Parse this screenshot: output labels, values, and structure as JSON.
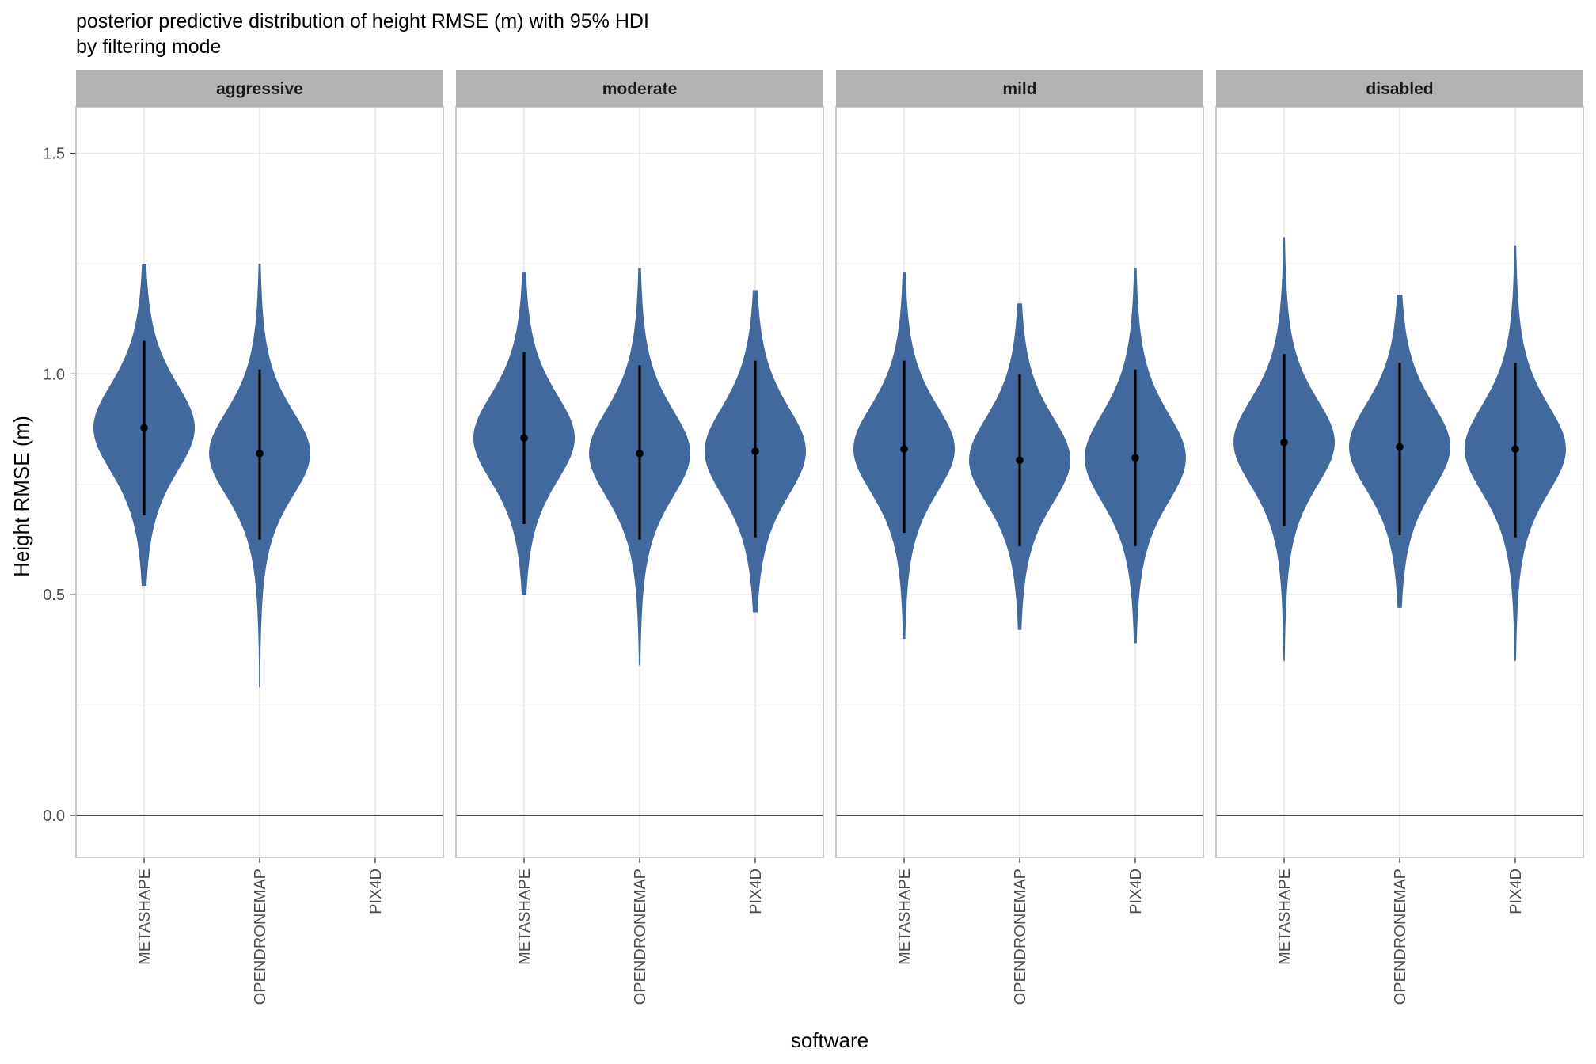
{
  "chart_data": {
    "type": "violin",
    "title": "posterior predictive distribution of height RMSE (m) with 95% HDI",
    "subtitle": "by filtering mode",
    "xlabel": "software",
    "ylabel": "Height RMSE (m)",
    "ylim": [
      -0.095,
      1.605
    ],
    "yticks": [
      0.0,
      0.5,
      1.0,
      1.5
    ],
    "ytick_labels": [
      "0.0",
      "0.5",
      "1.0",
      "1.5"
    ],
    "reference_line_y": 0.0,
    "grid": true,
    "fill_color": "#41699e",
    "interval_color": "#000000",
    "strip_color": "#b3b3b3",
    "categories": [
      "METASHAPE",
      "OPENDRONEMAP",
      "PIX4D"
    ],
    "panels": [
      {
        "facet": "aggressive",
        "series": [
          {
            "software": "METASHAPE",
            "median": 0.878,
            "hdi_low": 0.68,
            "hdi_high": 1.075,
            "min": 0.52,
            "max": 1.25
          },
          {
            "software": "OPENDRONEMAP",
            "median": 0.82,
            "hdi_low": 0.625,
            "hdi_high": 1.01,
            "min": 0.29,
            "max": 1.25
          },
          {
            "software": "PIX4D",
            "median": null,
            "hdi_low": null,
            "hdi_high": null,
            "min": null,
            "max": null
          }
        ]
      },
      {
        "facet": "moderate",
        "series": [
          {
            "software": "METASHAPE",
            "median": 0.855,
            "hdi_low": 0.66,
            "hdi_high": 1.05,
            "min": 0.5,
            "max": 1.23
          },
          {
            "software": "OPENDRONEMAP",
            "median": 0.82,
            "hdi_low": 0.625,
            "hdi_high": 1.02,
            "min": 0.34,
            "max": 1.24
          },
          {
            "software": "PIX4D",
            "median": 0.825,
            "hdi_low": 0.63,
            "hdi_high": 1.03,
            "min": 0.46,
            "max": 1.19
          }
        ]
      },
      {
        "facet": "mild",
        "series": [
          {
            "software": "METASHAPE",
            "median": 0.83,
            "hdi_low": 0.64,
            "hdi_high": 1.03,
            "min": 0.4,
            "max": 1.23
          },
          {
            "software": "OPENDRONEMAP",
            "median": 0.805,
            "hdi_low": 0.61,
            "hdi_high": 1.0,
            "min": 0.42,
            "max": 1.16
          },
          {
            "software": "PIX4D",
            "median": 0.81,
            "hdi_low": 0.61,
            "hdi_high": 1.01,
            "min": 0.39,
            "max": 1.24
          }
        ]
      },
      {
        "facet": "disabled",
        "series": [
          {
            "software": "METASHAPE",
            "median": 0.845,
            "hdi_low": 0.655,
            "hdi_high": 1.045,
            "min": 0.35,
            "max": 1.31
          },
          {
            "software": "OPENDRONEMAP",
            "median": 0.835,
            "hdi_low": 0.635,
            "hdi_high": 1.025,
            "min": 0.47,
            "max": 1.18
          },
          {
            "software": "PIX4D",
            "median": 0.83,
            "hdi_low": 0.63,
            "hdi_high": 1.025,
            "min": 0.35,
            "max": 1.29
          }
        ]
      }
    ]
  }
}
